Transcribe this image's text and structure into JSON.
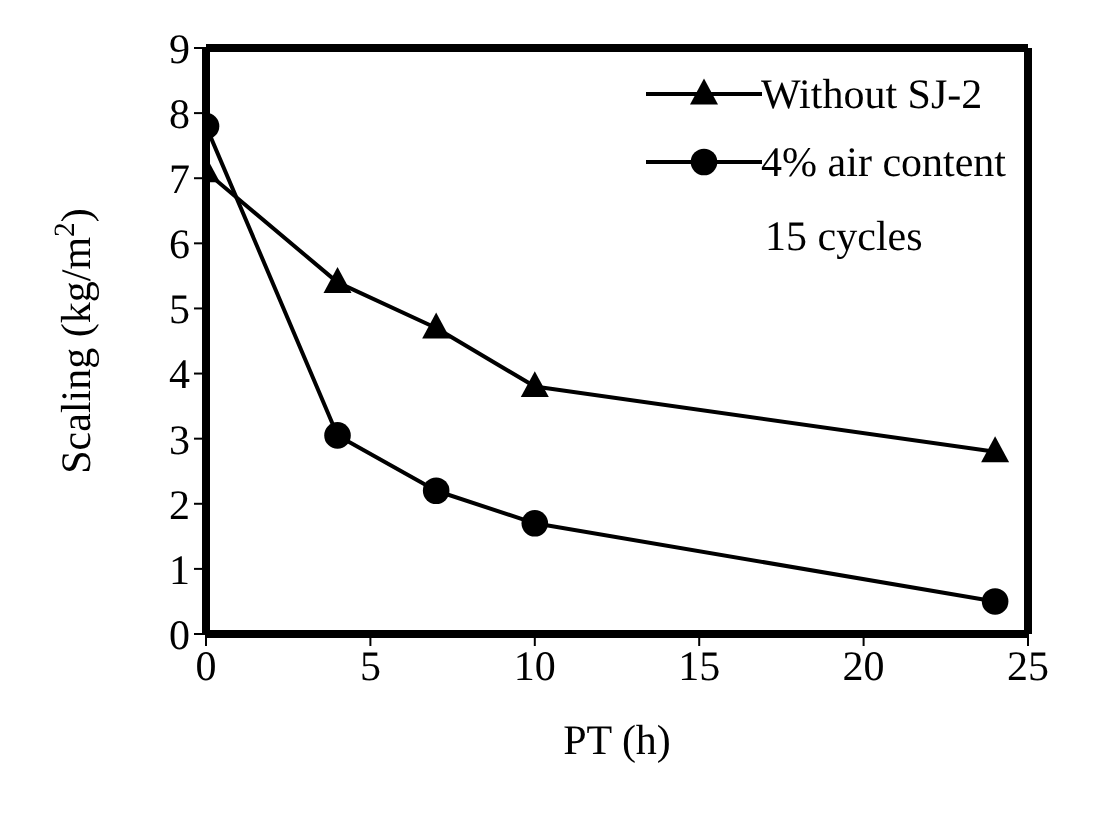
{
  "chart_data": {
    "type": "line",
    "xlabel": "PT  (h)",
    "ylabel": "Scaling  (kg/m$^{2}$)",
    "x": [
      0,
      4,
      7,
      10,
      24
    ],
    "series": [
      {
        "name": "Without SJ-2",
        "color": "#000000",
        "marker": "triangle",
        "values": [
          7.1,
          5.4,
          4.7,
          3.8,
          2.8
        ]
      },
      {
        "name": "4% air content",
        "color": "#000000",
        "marker": "circle",
        "values": [
          7.8,
          3.05,
          2.2,
          1.7,
          0.5
        ]
      }
    ],
    "xlim": [
      0,
      25
    ],
    "xticks": [
      0,
      5,
      10,
      15,
      20,
      25
    ],
    "ylim": [
      0,
      9
    ],
    "yticks": [
      0,
      1,
      2,
      3,
      4,
      5,
      6,
      7,
      8,
      9
    ],
    "legend": "top right",
    "line_style": "solid",
    "annotations": [
      "15 cycles"
    ]
  }
}
